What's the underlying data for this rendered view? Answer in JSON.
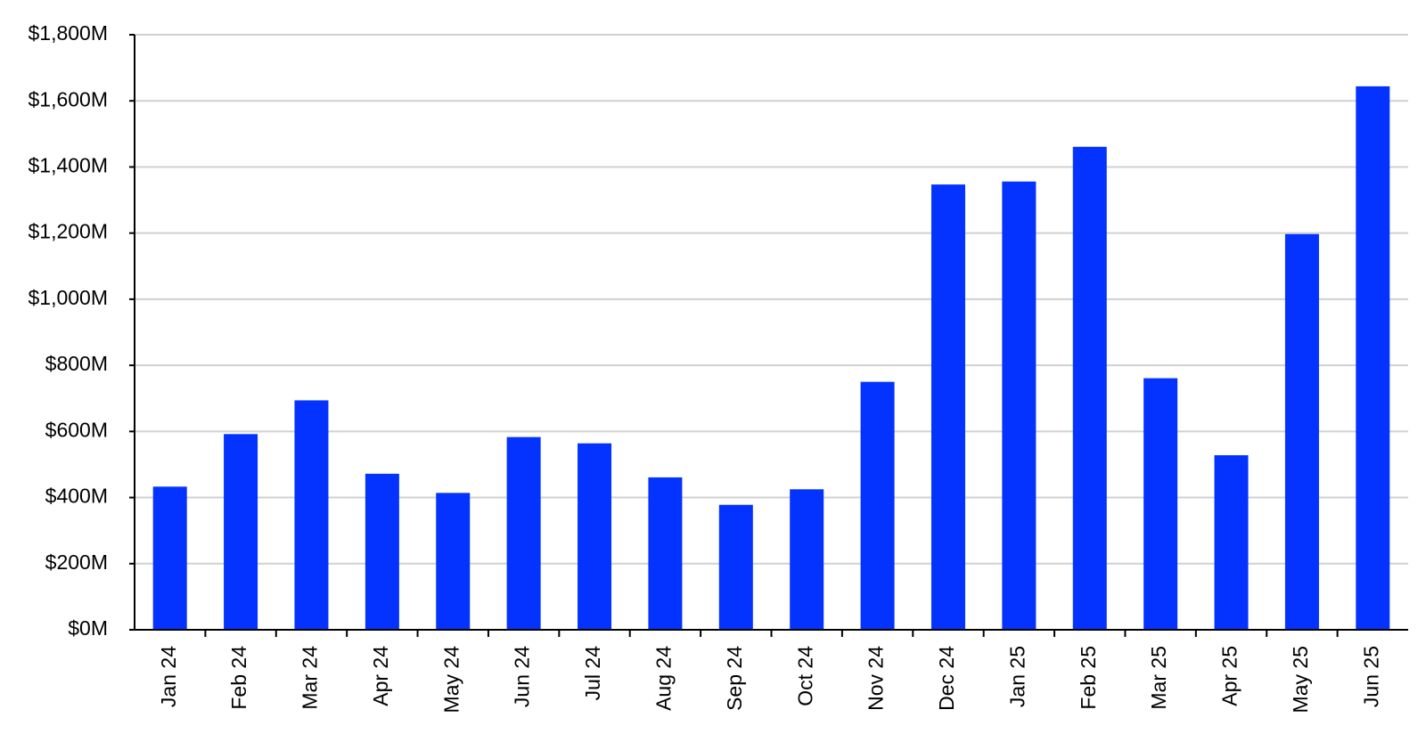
{
  "chart_data": {
    "type": "bar",
    "categories": [
      "Jan 24",
      "Feb 24",
      "Mar 24",
      "Apr 24",
      "May 24",
      "Jun 24",
      "Jul 24",
      "Aug 24",
      "Sep 24",
      "Oct 24",
      "Nov 24",
      "Dec 24",
      "Jan 25",
      "Feb 25",
      "Mar 25",
      "Apr 25",
      "May 25",
      "Jun 25"
    ],
    "values": [
      433,
      592,
      694,
      472,
      414,
      583,
      564,
      461,
      378,
      425,
      750,
      1347,
      1356,
      1461,
      761,
      528,
      1197,
      1644
    ],
    "color": "#0433ff",
    "ylim": [
      0,
      1800
    ],
    "yticks": [
      {
        "value": 0,
        "label": "$0M"
      },
      {
        "value": 200,
        "label": "$200M"
      },
      {
        "value": 400,
        "label": "$400M"
      },
      {
        "value": 600,
        "label": "$600M"
      },
      {
        "value": 800,
        "label": "$800M"
      },
      {
        "value": 1000,
        "label": "$1,000M"
      },
      {
        "value": 1200,
        "label": "$1,200M"
      },
      {
        "value": 1400,
        "label": "$1,400M"
      },
      {
        "value": 1600,
        "label": "$1,600M"
      },
      {
        "value": 1800,
        "label": "$1,800M"
      }
    ],
    "grid": true
  }
}
